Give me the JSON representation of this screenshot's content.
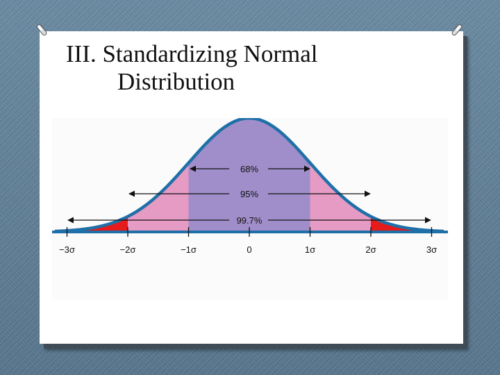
{
  "slide": {
    "title_line1": "III. Standardizing Normal",
    "title_line2": "Distribution"
  },
  "diagram": {
    "curve_color": "#1f6fa8",
    "center_fill": "#9f8ec9",
    "mid_fill": "#e59bc3",
    "tail_fill": "#e61b1b",
    "arrow_labels": [
      "68%",
      "95%",
      "99.7%"
    ],
    "axis_ticks": [
      "−3σ",
      "−2σ",
      "−1σ",
      "0",
      "1σ",
      "2σ",
      "3σ"
    ]
  }
}
